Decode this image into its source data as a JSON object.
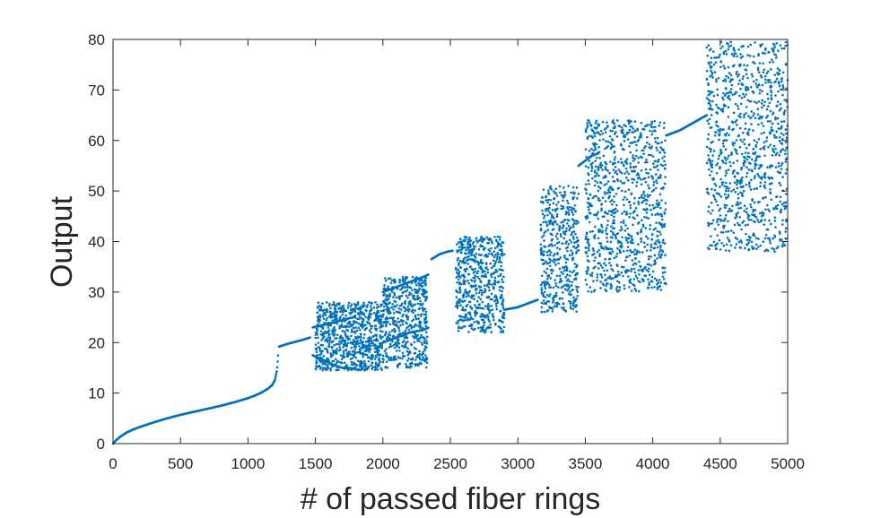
{
  "chart_data": {
    "type": "scatter",
    "title": "",
    "xlabel": "# of passed fiber rings",
    "ylabel": "Output",
    "xlim": [
      0,
      5000
    ],
    "ylim": [
      0,
      80
    ],
    "xticks": [
      0,
      500,
      1000,
      1500,
      2000,
      2500,
      3000,
      3500,
      4000,
      4500,
      5000
    ],
    "yticks": [
      0,
      10,
      20,
      30,
      40,
      50,
      60,
      70,
      80
    ],
    "grid": false,
    "legend": "none",
    "marker_color": "#0072BD",
    "series": [
      {
        "regime": "continuous",
        "x": [
          0,
          20,
          50,
          100,
          150,
          200,
          300,
          400,
          500,
          600,
          700,
          800,
          900,
          1000,
          1050,
          1100,
          1150,
          1180,
          1200,
          1215,
          1225
        ],
        "y": [
          0,
          0.6,
          1.3,
          2.2,
          2.8,
          3.3,
          4.2,
          5.0,
          5.7,
          6.3,
          6.9,
          7.5,
          8.2,
          9.0,
          9.5,
          10.1,
          10.9,
          11.6,
          12.6,
          14.5,
          18.0
        ]
      },
      {
        "regime": "period-1",
        "x": [
          1230,
          1300,
          1400,
          1460
        ],
        "y": [
          19.2,
          19.8,
          20.5,
          21.0
        ]
      },
      {
        "regime": "period-2",
        "x": [
          1480,
          1560,
          1640,
          1700,
          1780
        ],
        "y_upper": [
          23.0,
          23.5,
          24.0,
          24.5,
          25.0
        ],
        "y_lower": [
          17.5,
          16.5,
          15.5,
          15.0,
          14.8
        ]
      },
      {
        "regime": "period-2",
        "x": [
          2000,
          2100,
          2200,
          2300,
          2340
        ],
        "y_upper": [
          30.0,
          31.0,
          32.0,
          33.0,
          33.5
        ],
        "y_lower": [
          20.0,
          21.0,
          22.0,
          22.5,
          23.0
        ]
      },
      {
        "regime": "period-1",
        "x": [
          2360,
          2420,
          2480,
          2520
        ],
        "y": [
          36.5,
          37.5,
          38.0,
          38.2
        ]
      },
      {
        "regime": "period-1",
        "x": [
          2900,
          3000,
          3100,
          3150
        ],
        "y": [
          26.5,
          27.0,
          28.0,
          28.5
        ]
      },
      {
        "regime": "period-1",
        "x": [
          3450,
          3500,
          3550,
          3600
        ],
        "y": [
          55.0,
          56.0,
          57.0,
          57.5
        ]
      },
      {
        "regime": "period-1",
        "x": [
          4100,
          4200,
          4300,
          4400
        ],
        "y": [
          61.0,
          62.0,
          63.5,
          65.0
        ]
      },
      {
        "regime": "chaotic",
        "x_range": [
          1500,
          2000
        ],
        "y_band": [
          14.5,
          28.0
        ]
      },
      {
        "regime": "chaotic",
        "x_range": [
          2000,
          2330
        ],
        "y_band": [
          15.0,
          33.0
        ]
      },
      {
        "regime": "chaotic",
        "x_range": [
          2540,
          2900
        ],
        "y_band": [
          22.0,
          41.0
        ]
      },
      {
        "regime": "chaotic",
        "x_range": [
          3170,
          3450
        ],
        "y_band": [
          26.0,
          51.0
        ]
      },
      {
        "regime": "chaotic",
        "x_range": [
          3500,
          4100
        ],
        "y_band": [
          30.0,
          64.0
        ]
      },
      {
        "regime": "chaotic",
        "x_range": [
          4400,
          5000
        ],
        "y_band": [
          38.0,
          79.5
        ]
      }
    ]
  }
}
